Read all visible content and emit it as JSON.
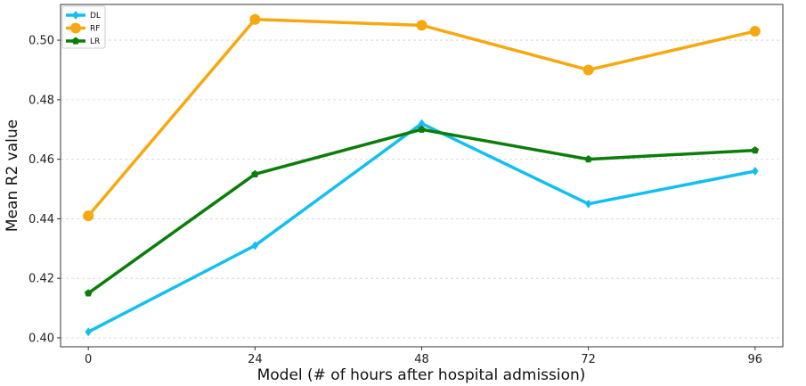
{
  "chart_data": {
    "type": "line",
    "title": "",
    "xlabel": "Model (# of hours after hospital admission)",
    "ylabel": "Mean R2 value",
    "x": [
      0,
      24,
      48,
      72,
      96
    ],
    "x_tick_labels": [
      "0",
      "24",
      "48",
      "72",
      "96"
    ],
    "xlim": [
      -4,
      100
    ],
    "ylim": [
      0.397,
      0.512
    ],
    "y_ticks": [
      0.4,
      0.42,
      0.44,
      0.46,
      0.48,
      0.5
    ],
    "y_tick_labels": [
      "0.40",
      "0.42",
      "0.44",
      "0.46",
      "0.48",
      "0.50"
    ],
    "grid": "horizontal dashed",
    "legend_position": "top-left",
    "series": [
      {
        "name": "DL",
        "color": "#12bff0",
        "marker": "diamond",
        "values": [
          0.402,
          0.431,
          0.472,
          0.445,
          0.456
        ]
      },
      {
        "name": "RF",
        "color": "#f7a810",
        "marker": "circle",
        "values": [
          0.441,
          0.507,
          0.505,
          0.49,
          0.503
        ]
      },
      {
        "name": "LR",
        "color": "#0a7d0a",
        "marker": "pentagon",
        "values": [
          0.415,
          0.455,
          0.47,
          0.46,
          0.463
        ]
      }
    ]
  }
}
